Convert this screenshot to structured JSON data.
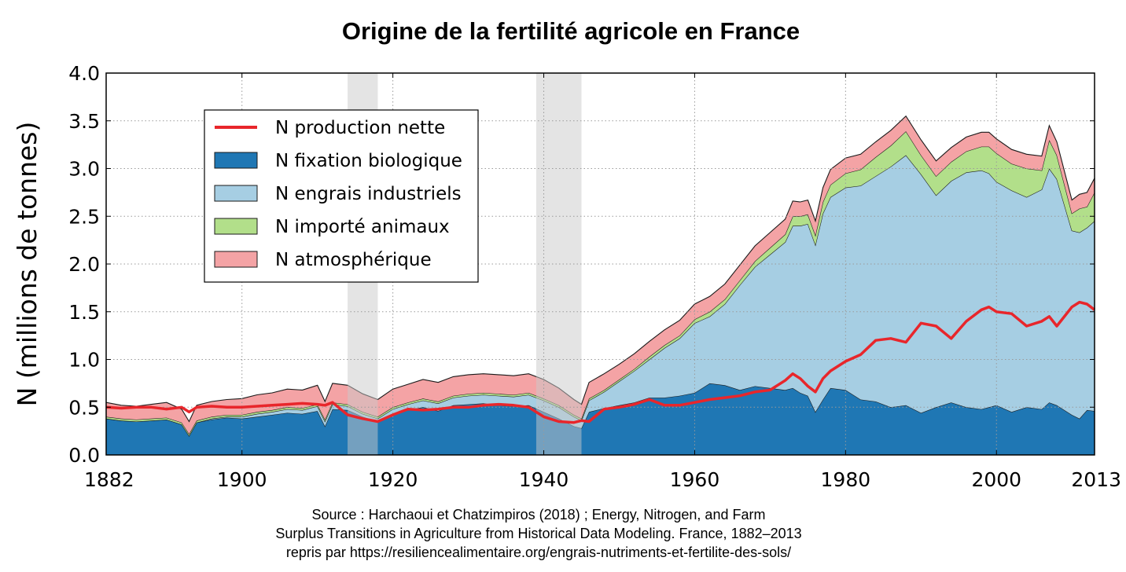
{
  "chart_data": {
    "type": "area",
    "title": "Origine de la fertilité agricole en France",
    "ylabel": "N (millions de tonnes)",
    "xlabel": "",
    "xlim": [
      1882,
      2013
    ],
    "ylim": [
      0,
      4.0
    ],
    "xticks": [
      1882,
      1900,
      1920,
      1940,
      1960,
      1980,
      2000,
      2013
    ],
    "yticks": [
      "0.0",
      "0.5",
      "1.0",
      "1.5",
      "2.0",
      "2.5",
      "3.0",
      "3.5",
      "4.0"
    ],
    "grid": true,
    "legend_position": "upper-left",
    "shaded_periods": [
      [
        1914,
        1918
      ],
      [
        1939,
        1945
      ]
    ],
    "legend": [
      {
        "label": "N production nette",
        "kind": "line",
        "color": "#e8262b"
      },
      {
        "label": "N fixation biologique",
        "kind": "area",
        "color": "#1f77b4"
      },
      {
        "label": "N engrais industriels",
        "kind": "area",
        "color": "#a6cee3"
      },
      {
        "label": "N importé animaux",
        "kind": "area",
        "color": "#b2df8a"
      },
      {
        "label": "N atmosphérique",
        "kind": "area",
        "color": "#f4a3a5"
      }
    ],
    "x": [
      1882,
      1884,
      1886,
      1888,
      1890,
      1892,
      1893,
      1894,
      1896,
      1898,
      1900,
      1902,
      1904,
      1906,
      1908,
      1910,
      1911,
      1912,
      1914,
      1916,
      1918,
      1920,
      1922,
      1924,
      1926,
      1928,
      1930,
      1932,
      1934,
      1936,
      1938,
      1940,
      1942,
      1944,
      1945,
      1946,
      1948,
      1950,
      1952,
      1954,
      1956,
      1958,
      1960,
      1962,
      1964,
      1966,
      1968,
      1970,
      1972,
      1973,
      1974,
      1975,
      1976,
      1977,
      1978,
      1980,
      1982,
      1984,
      1986,
      1988,
      1990,
      1992,
      1994,
      1996,
      1998,
      1999,
      2000,
      2002,
      2004,
      2006,
      2007,
      2008,
      2010,
      2011,
      2012,
      2013
    ],
    "series": [
      {
        "name": "N fixation biologique",
        "values": [
          0.38,
          0.36,
          0.35,
          0.36,
          0.37,
          0.32,
          0.2,
          0.34,
          0.37,
          0.39,
          0.38,
          0.4,
          0.42,
          0.44,
          0.43,
          0.46,
          0.3,
          0.48,
          0.47,
          0.4,
          0.35,
          0.43,
          0.47,
          0.5,
          0.46,
          0.52,
          0.53,
          0.54,
          0.52,
          0.51,
          0.52,
          0.45,
          0.38,
          0.3,
          0.28,
          0.45,
          0.49,
          0.52,
          0.55,
          0.6,
          0.6,
          0.62,
          0.65,
          0.75,
          0.73,
          0.68,
          0.72,
          0.7,
          0.68,
          0.7,
          0.65,
          0.62,
          0.45,
          0.58,
          0.7,
          0.68,
          0.58,
          0.56,
          0.5,
          0.52,
          0.44,
          0.5,
          0.55,
          0.5,
          0.48,
          0.5,
          0.52,
          0.45,
          0.5,
          0.48,
          0.55,
          0.52,
          0.42,
          0.38,
          0.47,
          0.46
        ]
      },
      {
        "name": "N engrais industriels",
        "values": [
          0.0,
          0.0,
          0.0,
          0.0,
          0.0,
          0.0,
          0.0,
          0.0,
          0.01,
          0.01,
          0.02,
          0.03,
          0.03,
          0.04,
          0.04,
          0.05,
          0.05,
          0.05,
          0.04,
          0.03,
          0.03,
          0.05,
          0.06,
          0.07,
          0.08,
          0.08,
          0.09,
          0.09,
          0.1,
          0.1,
          0.11,
          0.12,
          0.12,
          0.1,
          0.08,
          0.12,
          0.17,
          0.25,
          0.33,
          0.4,
          0.52,
          0.6,
          0.73,
          0.7,
          0.85,
          1.1,
          1.25,
          1.4,
          1.55,
          1.7,
          1.75,
          1.8,
          1.75,
          1.95,
          2.0,
          2.12,
          2.24,
          2.36,
          2.52,
          2.62,
          2.5,
          2.22,
          2.32,
          2.46,
          2.5,
          2.45,
          2.34,
          2.32,
          2.2,
          2.3,
          2.45,
          2.37,
          1.93,
          1.95,
          1.91,
          1.99
        ]
      },
      {
        "name": "N importé animaux",
        "values": [
          0.02,
          0.02,
          0.02,
          0.02,
          0.02,
          0.02,
          0.02,
          0.02,
          0.02,
          0.02,
          0.02,
          0.02,
          0.02,
          0.02,
          0.02,
          0.02,
          0.02,
          0.02,
          0.02,
          0.02,
          0.02,
          0.02,
          0.02,
          0.02,
          0.02,
          0.02,
          0.02,
          0.02,
          0.02,
          0.02,
          0.02,
          0.02,
          0.02,
          0.02,
          0.02,
          0.02,
          0.02,
          0.02,
          0.02,
          0.03,
          0.03,
          0.03,
          0.04,
          0.05,
          0.05,
          0.05,
          0.06,
          0.07,
          0.08,
          0.1,
          0.1,
          0.1,
          0.1,
          0.12,
          0.13,
          0.15,
          0.17,
          0.2,
          0.22,
          0.25,
          0.2,
          0.2,
          0.2,
          0.22,
          0.25,
          0.28,
          0.3,
          0.28,
          0.3,
          0.2,
          0.3,
          0.25,
          0.18,
          0.25,
          0.22,
          0.3
        ]
      },
      {
        "name": "N atmosphérique",
        "values": [
          0.15,
          0.14,
          0.14,
          0.15,
          0.16,
          0.14,
          0.13,
          0.16,
          0.16,
          0.16,
          0.17,
          0.18,
          0.18,
          0.19,
          0.19,
          0.2,
          0.19,
          0.2,
          0.2,
          0.19,
          0.18,
          0.19,
          0.19,
          0.2,
          0.2,
          0.2,
          0.2,
          0.2,
          0.2,
          0.2,
          0.2,
          0.2,
          0.18,
          0.16,
          0.15,
          0.17,
          0.17,
          0.16,
          0.16,
          0.16,
          0.16,
          0.16,
          0.16,
          0.16,
          0.16,
          0.16,
          0.16,
          0.16,
          0.16,
          0.16,
          0.15,
          0.15,
          0.15,
          0.15,
          0.16,
          0.16,
          0.16,
          0.16,
          0.16,
          0.16,
          0.16,
          0.16,
          0.15,
          0.15,
          0.15,
          0.15,
          0.15,
          0.15,
          0.15,
          0.15,
          0.15,
          0.14,
          0.14,
          0.15,
          0.15,
          0.15
        ]
      },
      {
        "name": "N production nette",
        "values": [
          0.5,
          0.49,
          0.5,
          0.5,
          0.48,
          0.5,
          0.45,
          0.5,
          0.51,
          0.5,
          0.5,
          0.51,
          0.52,
          0.53,
          0.54,
          0.53,
          0.52,
          0.55,
          0.42,
          0.38,
          0.35,
          0.42,
          0.48,
          0.47,
          0.48,
          0.5,
          0.5,
          0.52,
          0.53,
          0.52,
          0.5,
          0.4,
          0.35,
          0.34,
          0.36,
          0.35,
          0.48,
          0.5,
          0.53,
          0.58,
          0.52,
          0.52,
          0.55,
          0.58,
          0.6,
          0.62,
          0.66,
          0.68,
          0.78,
          0.85,
          0.8,
          0.72,
          0.66,
          0.8,
          0.88,
          0.98,
          1.05,
          1.2,
          1.22,
          1.18,
          1.38,
          1.35,
          1.22,
          1.4,
          1.52,
          1.55,
          1.5,
          1.48,
          1.35,
          1.4,
          1.45,
          1.35,
          1.55,
          1.6,
          1.58,
          1.52
        ]
      }
    ]
  },
  "source": {
    "line1": "Source : Harchaoui et Chatzimpiros (2018) ; Energy, Nitrogen, and Farm",
    "line2": "Surplus Transitions in Agriculture from Historical Data Modeling. France, 1882–2013",
    "line3": "repris par https://resiliencealimentaire.org/engrais-nutriments-et-fertilite-des-sols/"
  }
}
